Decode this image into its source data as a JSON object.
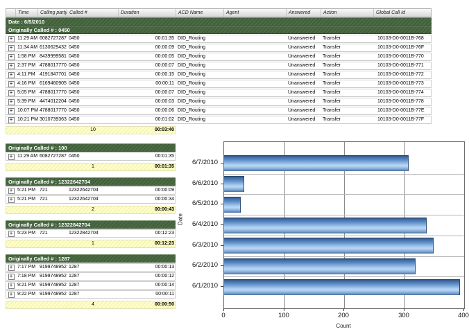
{
  "report": {
    "columns": [
      "",
      "Time",
      "Calling party #",
      "Called #",
      "Duration",
      "ACD Name",
      "Agent",
      "Answered",
      "Action",
      "Global Call Id"
    ],
    "date_group_label": "Date : 6/5/2010",
    "groups": [
      {
        "label": "Originally Called # : 0450",
        "full_width": true,
        "rows": [
          [
            "11:29 AM",
            "6082727287",
            "0450",
            "00:01:35",
            "DID_Routing",
            "",
            "Unanswered",
            "Transfer",
            "10103-D0-0011B-768"
          ],
          [
            "11:34 AM",
            "6130629432",
            "0450",
            "00:00:09",
            "DID_Routing",
            "",
            "Unanswered",
            "Transfer",
            "10103-D0-0011B-76F"
          ],
          [
            "1:58 PM",
            "8439999581",
            "0450",
            "00:00:05",
            "DID_Routing",
            "",
            "Unanswered",
            "Transfer",
            "10103-D0-0011B-770"
          ],
          [
            "2:37 PM",
            "4788017770",
            "0450",
            "00:00:07",
            "DID_Routing",
            "",
            "Unanswered",
            "Transfer",
            "10103-D0-0011B-771"
          ],
          [
            "4:11 PM",
            "4191847701",
            "0450",
            "00:00:15",
            "DID_Routing",
            "",
            "Unanswered",
            "Transfer",
            "10103-D0-0011B-772"
          ],
          [
            "4:16 PM",
            "6169460905",
            "0450",
            "00:00:11",
            "DID_Routing",
            "",
            "Unanswered",
            "Transfer",
            "10103-D0-0011B-773"
          ],
          [
            "5:05 PM",
            "4788017770",
            "0450",
            "00:00:07",
            "DID_Routing",
            "",
            "Unanswered",
            "Transfer",
            "10103-D0-0011B-774"
          ],
          [
            "5:39 PM",
            "4474012204",
            "0450",
            "00:00:03",
            "DID_Routing",
            "",
            "Unanswered",
            "Transfer",
            "10103-D0-0011B-778"
          ],
          [
            "10:07 PM",
            "4788017770",
            "0450",
            "00:00:06",
            "DID_Routing",
            "",
            "Unanswered",
            "Transfer",
            "10103-D0-0011B-77E"
          ],
          [
            "10:21 PM",
            "3010739363",
            "0450",
            "00:01:02",
            "DID_Routing",
            "",
            "Unanswered",
            "Transfer",
            "10103-D0-0011B-77F"
          ]
        ],
        "summary_count": "10",
        "summary_duration": "00:03:40"
      },
      {
        "label": "Originally Called # : 100",
        "full_width": false,
        "rows": [
          [
            "11:29 AM",
            "6082727287",
            "0450",
            "00:01:35"
          ]
        ],
        "summary_count": "1",
        "summary_duration": "00:01:35"
      },
      {
        "label": "Originally Called # : 12322642704",
        "full_width": false,
        "rows": [
          [
            "5:21 PM",
            "721",
            "12322642704",
            "00:00:09"
          ],
          [
            "5:21 PM",
            "721",
            "12322642704",
            "00:00:34"
          ]
        ],
        "summary_count": "2",
        "summary_duration": "00:00:43"
      },
      {
        "label": "Originally Called # : 12322842704",
        "full_width": false,
        "rows": [
          [
            "5:23 PM",
            "721",
            "12322842704",
            "00:12:23"
          ]
        ],
        "summary_count": "1",
        "summary_duration": "00:12:23"
      },
      {
        "label": "Originally Called # : 1287",
        "full_width": false,
        "rows": [
          [
            "7:17 PM",
            "9199748952",
            "1287",
            "00:00:13"
          ],
          [
            "7:18 PM",
            "9199748952",
            "1287",
            "00:00:12"
          ],
          [
            "9:21 PM",
            "9199748952",
            "1287",
            "00:00:14"
          ],
          [
            "9:22 PM",
            "9199748952",
            "1287",
            "00:00:11"
          ]
        ],
        "summary_count": "4",
        "summary_duration": "00:00:50"
      }
    ],
    "expand_glyph": "+"
  },
  "chart_data": {
    "type": "bar",
    "orientation": "horizontal",
    "title": "",
    "categories": [
      "6/7/2010",
      "6/6/2010",
      "6/5/2010",
      "6/4/2010",
      "6/3/2010",
      "6/2/2010",
      "6/1/2010"
    ],
    "values": [
      307,
      33,
      28,
      338,
      349,
      319,
      393
    ],
    "xlabel": "Count",
    "ylabel": "Date",
    "xlim": [
      0,
      400
    ],
    "xticks": [
      0,
      100,
      200,
      300,
      400
    ],
    "grid": true,
    "legend": false,
    "bar_color_top": "#3c68a2",
    "bar_color_mid": "#b3d2f0",
    "bar_color_bottom": "#4a729f",
    "group_header_color": "#45633f",
    "summary_row_color": "#fbfbc2"
  }
}
